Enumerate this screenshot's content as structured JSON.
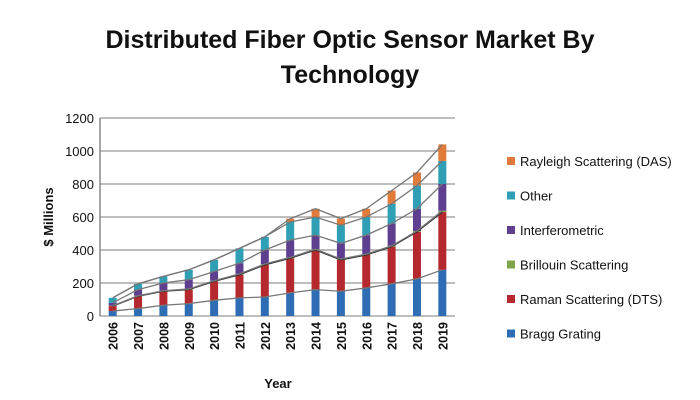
{
  "chart_data": {
    "type": "bar",
    "stacked": true,
    "title": "Distributed Fiber Optic Sensor Market By Technology",
    "title_lines": [
      "Distributed Fiber Optic Sensor Market By",
      "Technology"
    ],
    "xlabel": "Year",
    "ylabel": "$ Millions",
    "ylim": [
      0,
      1200
    ],
    "yticks": [
      0,
      200,
      400,
      600,
      800,
      1000,
      1200
    ],
    "grid": true,
    "legend_position": "right",
    "categories": [
      "2006",
      "2007",
      "2008",
      "2009",
      "2010",
      "2011",
      "2012",
      "2013",
      "2014",
      "2015",
      "2016",
      "2017",
      "2018",
      "2019"
    ],
    "series": [
      {
        "name": "Bragg Grating",
        "color": "#2e6db4",
        "values": [
          30,
          45,
          65,
          75,
          95,
          110,
          115,
          140,
          160,
          150,
          170,
          195,
          225,
          280
        ]
      },
      {
        "name": "Raman Scattering (DTS)",
        "color": "#b5282e",
        "values": [
          30,
          75,
          85,
          85,
          115,
          140,
          195,
          210,
          240,
          190,
          200,
          225,
          285,
          350
        ]
      },
      {
        "name": "Brillouin Scattering",
        "color": "#7ea44a",
        "values": [
          2,
          3,
          3,
          4,
          4,
          5,
          5,
          5,
          5,
          5,
          5,
          5,
          5,
          8
        ]
      },
      {
        "name": "Interferometric",
        "color": "#5e3f8f",
        "values": [
          18,
          37,
          47,
          56,
          56,
          65,
          85,
          105,
          85,
          95,
          115,
          135,
          135,
          162
        ]
      },
      {
        "name": "Other",
        "color": "#2e9fb5",
        "values": [
          30,
          35,
          40,
          60,
          70,
          90,
          80,
          110,
          110,
          110,
          110,
          120,
          140,
          140
        ]
      },
      {
        "name": "Rayleigh Scattering (DAS)",
        "color": "#e07b39",
        "values": [
          0,
          0,
          0,
          0,
          0,
          0,
          0,
          20,
          50,
          40,
          50,
          80,
          80,
          100
        ]
      }
    ]
  }
}
